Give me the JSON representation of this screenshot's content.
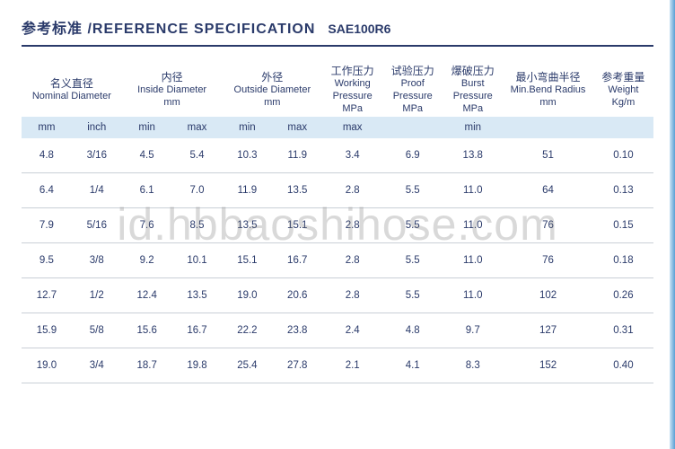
{
  "title": {
    "label_cn_en": "参考标准 /REFERENCE SPECIFICATION",
    "code": "SAE100R6"
  },
  "watermark": "id.hbbaoshihose.com",
  "columns": [
    {
      "cn": "名义直径",
      "en": "Nominal Diameter",
      "unit": "",
      "sub": [
        "mm",
        "inch"
      ],
      "widths": [
        50,
        50
      ]
    },
    {
      "cn": "内径",
      "en": "Inside Diameter",
      "unit": "mm",
      "sub": [
        "min",
        "max"
      ],
      "widths": [
        50,
        50
      ]
    },
    {
      "cn": "外径",
      "en": "Outside Diameter",
      "unit": "mm",
      "sub": [
        "min",
        "max"
      ],
      "widths": [
        50,
        50
      ]
    },
    {
      "cn": "工作压力",
      "en": "Working Pressure",
      "unit": "MPa",
      "sub": [
        "max"
      ],
      "widths": [
        60
      ]
    },
    {
      "cn": "试验压力",
      "en": "Proof Pressure",
      "unit": "MPa",
      "sub": [
        ""
      ],
      "widths": [
        60
      ]
    },
    {
      "cn": "爆破压力",
      "en": "Burst Pressure",
      "unit": "MPa",
      "sub": [
        "min"
      ],
      "widths": [
        60
      ]
    },
    {
      "cn": "最小弯曲半径",
      "en": "Min.Bend Radius",
      "unit": "mm",
      "sub": [
        ""
      ],
      "widths": [
        90
      ]
    },
    {
      "cn": "参考重量",
      "en": "Weight",
      "unit": "Kg/m",
      "sub": [
        ""
      ],
      "widths": [
        60
      ]
    }
  ],
  "rows": [
    [
      "4.8",
      "3/16",
      "4.5",
      "5.4",
      "10.3",
      "11.9",
      "3.4",
      "6.9",
      "13.8",
      "51",
      "0.10"
    ],
    [
      "6.4",
      "1/4",
      "6.1",
      "7.0",
      "11.9",
      "13.5",
      "2.8",
      "5.5",
      "11.0",
      "64",
      "0.13"
    ],
    [
      "7.9",
      "5/16",
      "7.6",
      "8.5",
      "13.5",
      "15.1",
      "2.8",
      "5.5",
      "11.0",
      "76",
      "0.15"
    ],
    [
      "9.5",
      "3/8",
      "9.2",
      "10.1",
      "15.1",
      "16.7",
      "2.8",
      "5.5",
      "11.0",
      "76",
      "0.18"
    ],
    [
      "12.7",
      "1/2",
      "12.4",
      "13.5",
      "19.0",
      "20.6",
      "2.8",
      "5.5",
      "11.0",
      "102",
      "0.26"
    ],
    [
      "15.9",
      "5/8",
      "15.6",
      "16.7",
      "22.2",
      "23.8",
      "2.4",
      "4.8",
      "9.7",
      "127",
      "0.31"
    ],
    [
      "19.0",
      "3/4",
      "18.7",
      "19.8",
      "25.4",
      "27.8",
      "2.1",
      "4.1",
      "8.3",
      "152",
      "0.40"
    ]
  ],
  "colors": {
    "text": "#2a3a6a",
    "header_band": "#d9e9f5",
    "row_border": "#c9cfd6",
    "title_border": "#2a3a6a",
    "edge_light": "#cde4f5",
    "edge_dark": "#5a9fd4",
    "watermark": "rgba(120,120,120,0.28)"
  }
}
